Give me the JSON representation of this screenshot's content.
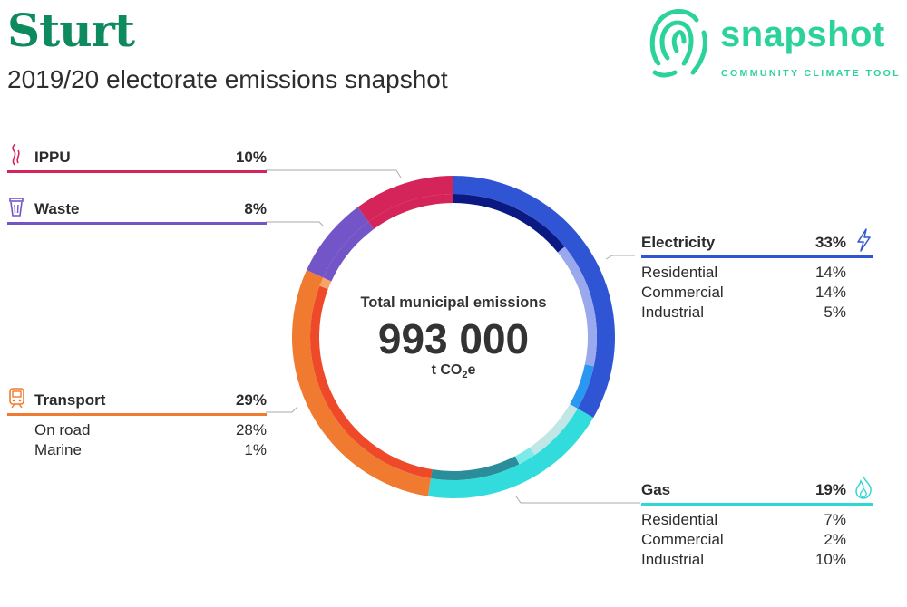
{
  "header": {
    "title": "Sturt",
    "subtitle": "2019/20 electorate emissions snapshot"
  },
  "logo": {
    "word": "snapshot",
    "tagline": "COMMUNITY CLIMATE TOOL",
    "color": "#2bd39b"
  },
  "center": {
    "label": "Total municipal emissions",
    "value": "993 000",
    "unit_prefix": "t CO",
    "unit_sub": "2",
    "unit_suffix": "e"
  },
  "sectors": {
    "ippu": {
      "name": "IPPU",
      "pct": "10%",
      "color": "#d4245a",
      "icon": "smoke-icon"
    },
    "waste": {
      "name": "Waste",
      "pct": "8%",
      "color": "#7355c8",
      "icon": "trash-bin-icon"
    },
    "transport": {
      "name": "Transport",
      "pct": "29%",
      "color": "#f07a30",
      "icon": "train-icon",
      "subs": [
        {
          "label": "On road",
          "pct": "28%"
        },
        {
          "label": "Marine",
          "pct": "1%"
        }
      ]
    },
    "electricity": {
      "name": "Electricity",
      "pct": "33%",
      "color": "#2f55d4",
      "icon": "lightning-icon",
      "subs": [
        {
          "label": "Residential",
          "pct": "14%"
        },
        {
          "label": "Commercial",
          "pct": "14%"
        },
        {
          "label": "Industrial",
          "pct": "5%"
        }
      ]
    },
    "gas": {
      "name": "Gas",
      "pct": "19%",
      "color": "#33d6d6",
      "icon": "flame-icon",
      "subs": [
        {
          "label": "Residential",
          "pct": "7%"
        },
        {
          "label": "Commercial",
          "pct": "2%"
        },
        {
          "label": "Industrial",
          "pct": "10%"
        }
      ]
    }
  },
  "chart_data": {
    "type": "pie",
    "total": 993000,
    "unit": "t CO2e",
    "series": [
      {
        "name": "Electricity",
        "value": 33,
        "color": "#2f55d4",
        "subs": [
          {
            "name": "Residential",
            "value": 14,
            "color": "#0a1a82"
          },
          {
            "name": "Commercial",
            "value": 14,
            "color": "#9aa8ee"
          },
          {
            "name": "Industrial",
            "value": 5,
            "color": "#2a98f0"
          }
        ]
      },
      {
        "name": "Gas",
        "value": 19,
        "color": "#33dcdc",
        "subs": [
          {
            "name": "Residential",
            "value": 7,
            "color": "#c0e6e6"
          },
          {
            "name": "Commercial",
            "value": 2,
            "color": "#7fe8e8"
          },
          {
            "name": "Industrial",
            "value": 10,
            "color": "#2a8e9a"
          }
        ]
      },
      {
        "name": "Transport",
        "value": 29,
        "color": "#f07a30",
        "subs": [
          {
            "name": "On road",
            "value": 28,
            "color": "#ee4a2a"
          },
          {
            "name": "Marine",
            "value": 1,
            "color": "#f6a468"
          }
        ]
      },
      {
        "name": "Waste",
        "value": 8,
        "color": "#7355c8",
        "subs": []
      },
      {
        "name": "IPPU",
        "value": 10,
        "color": "#d4245a",
        "subs": []
      }
    ]
  }
}
